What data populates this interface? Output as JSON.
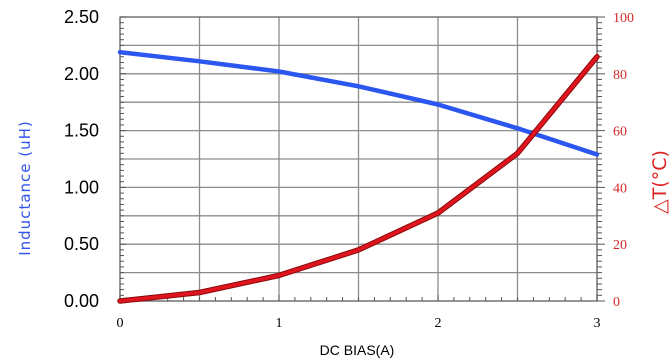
{
  "chart_data": {
    "type": "line",
    "xlabel": "DC BIAS(A)",
    "ylabel_left": "Inductance (uH)",
    "ylabel_right": "△T(°C)",
    "xlim": [
      0,
      3
    ],
    "ylim_left": [
      0,
      2.5
    ],
    "ylim_right": [
      0,
      100
    ],
    "x_ticks": [
      "0",
      "1",
      "2",
      "3"
    ],
    "y_left_ticks": [
      "0.00",
      "0.50",
      "1.00",
      "1.50",
      "2.00",
      "2.50"
    ],
    "y_right_ticks": [
      "0",
      "20",
      "40",
      "60",
      "80",
      "100"
    ],
    "grid": true,
    "series": [
      {
        "axis": "left",
        "color": "#2b56f0",
        "x": [
          0,
          0.5,
          1.0,
          1.5,
          2.0,
          2.5,
          3.0
        ],
        "values": [
          2.19,
          2.11,
          2.02,
          1.89,
          1.73,
          1.52,
          1.29
        ]
      },
      {
        "axis": "right",
        "color": "#e0141e",
        "x": [
          0,
          0.5,
          1.0,
          1.5,
          2.0,
          2.5,
          3.0
        ],
        "values": [
          0,
          3,
          9,
          18,
          31,
          52,
          86
        ]
      }
    ]
  }
}
